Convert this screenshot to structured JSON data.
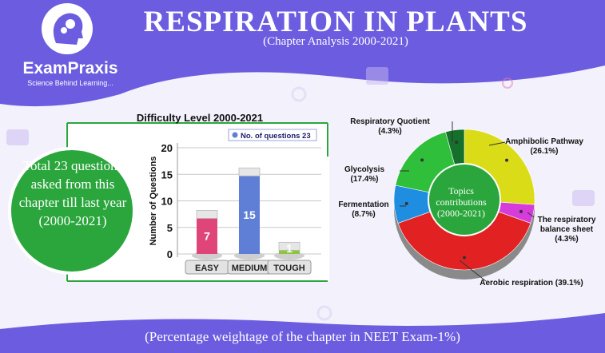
{
  "header": {
    "logo_name": "ExamPraxis",
    "logo_tagline": "Science Behind Learning...",
    "title": "RESPIRATION IN PLANTS",
    "subtitle": "(Chapter Analysis 2000-2021)"
  },
  "summary_text": "Total 23 questions asked from this chapter till last year (2000-2021)",
  "footer_text": "(Percentage weightage of the chapter in NEET Exam-1%)",
  "colors": {
    "banner": "#6b5ce0",
    "easy_bar": "#e0457a",
    "medium_bar": "#5f7fd6",
    "tough_bar": "#8cc63f",
    "green_circle": "#2aa63c",
    "topic_amphibolic": "#d9dc17",
    "topic_balance": "#d63cd9",
    "topic_aerobic": "#e22222",
    "topic_fermentation": "#1f8ee0",
    "topic_glycolysis": "#2fbf3a",
    "topic_rq": "#14702a"
  },
  "chart_data": [
    {
      "type": "bar",
      "title": "Difficulty Level 2000-2021",
      "ylabel": "Number of Questions",
      "legend": "No. of questions 23",
      "categories": [
        "EASY",
        "MEDIUM",
        "TOUGH"
      ],
      "values": [
        7,
        15,
        1
      ],
      "yticks": [
        0,
        5,
        10,
        15,
        20
      ],
      "ylim": [
        0,
        20
      ],
      "grid": true,
      "legend_position": "top-right"
    },
    {
      "type": "pie",
      "title": "Topics contributions (2000-2021)",
      "slices": [
        {
          "label": "Amphibolic Pathway",
          "pct_label": "(26.1%)",
          "value": 26.1
        },
        {
          "label": "The respiratory balance sheet",
          "pct_label": "(4.3%)",
          "value": 4.3
        },
        {
          "label": "Aerobic respiration",
          "pct_label": "(39.1%)",
          "value": 39.1
        },
        {
          "label": "Fermentation",
          "pct_label": "(8.7%)",
          "value": 8.7
        },
        {
          "label": "Glycolysis",
          "pct_label": "(17.4%)",
          "value": 17.4
        },
        {
          "label": "Respiratory Quotient",
          "pct_label": "(4.3%)",
          "value": 4.3
        }
      ]
    }
  ]
}
